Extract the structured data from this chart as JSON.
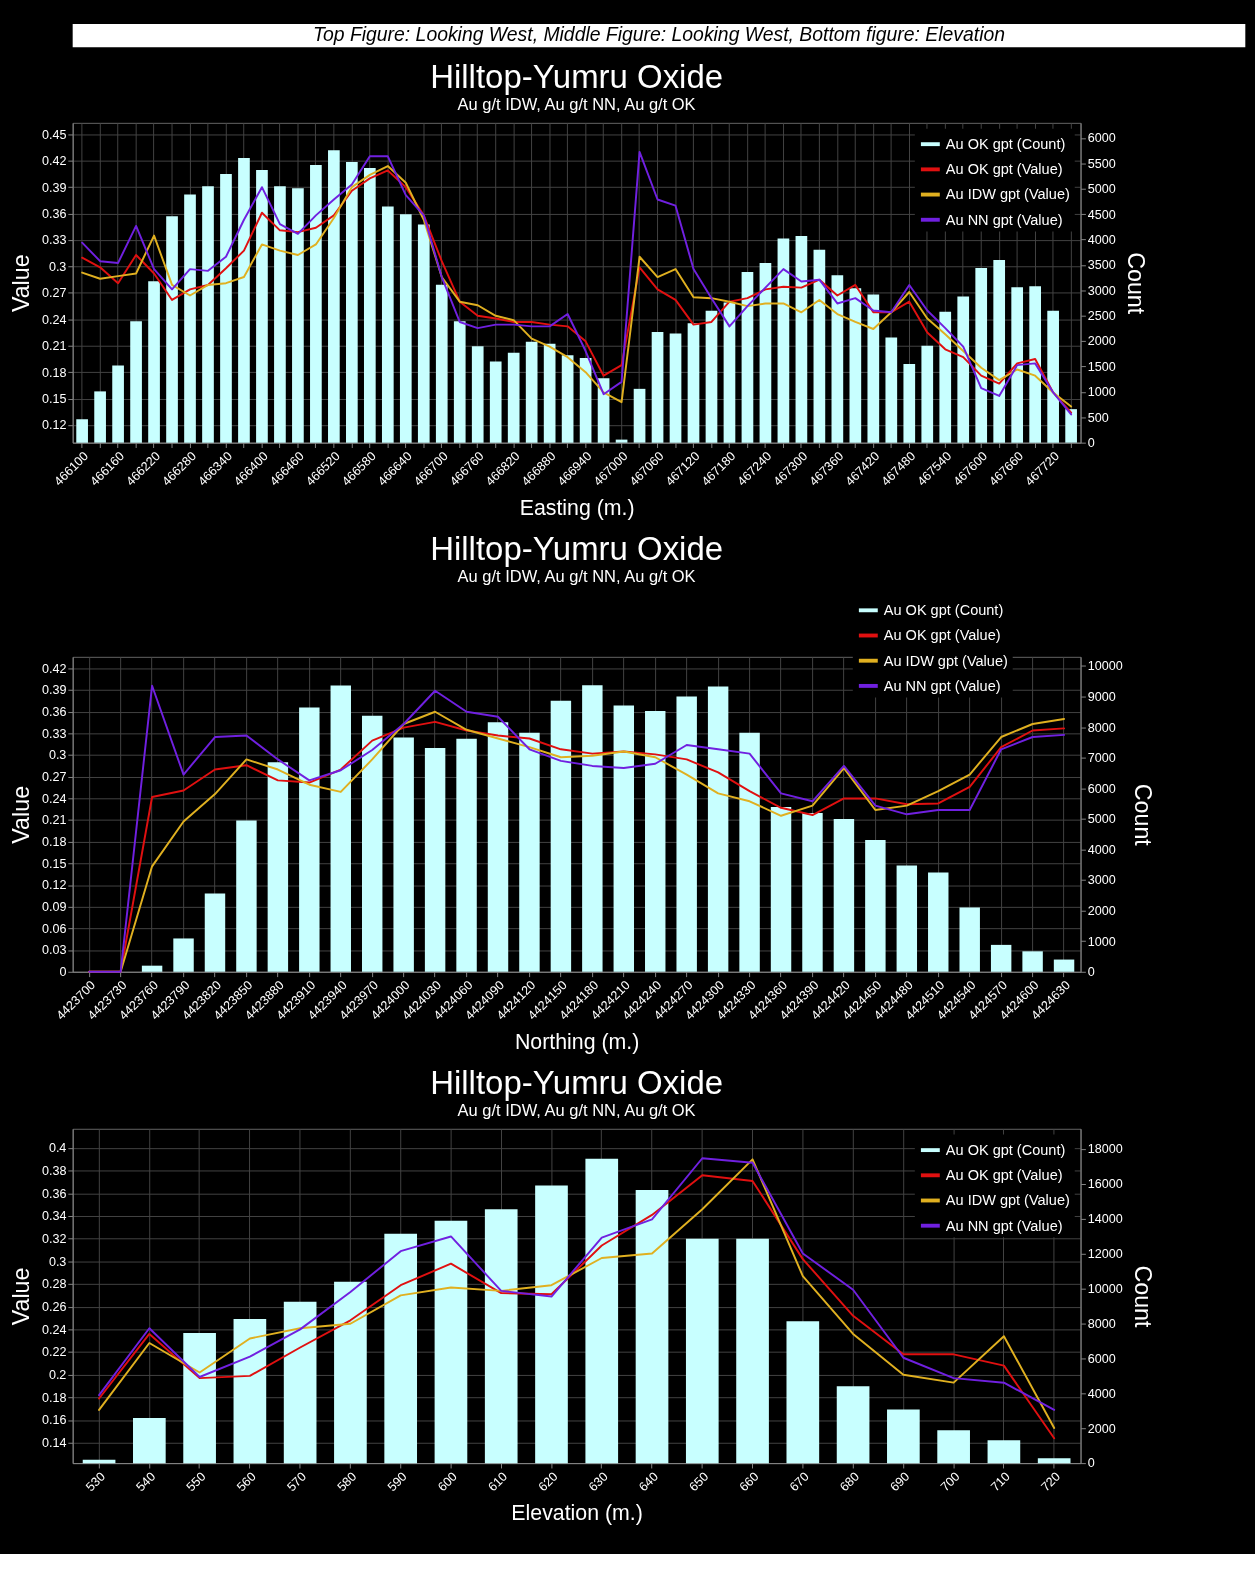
{
  "chart_data": [
    {
      "type": "bar",
      "title": "Hilltop-Yumru Oxide",
      "subtitle": "Au g/t IDW, Au g/t NN, Au g/t OK",
      "xlabel": "Easting (m.)",
      "ylabel": "Value",
      "y2label": "Count",
      "annotations": [
        "Top Figure: Looking West, Middle Figure: Looking West, Bottom figure: Elevation"
      ],
      "categories": [
        "466100",
        null,
        "466160",
        null,
        "466220",
        null,
        "466280",
        null,
        "466340",
        null,
        "466400",
        null,
        "466460",
        null,
        "466520",
        null,
        "466580",
        null,
        "466640",
        null,
        "466700",
        null,
        "466760",
        null,
        "466820",
        null,
        "466880",
        null,
        "466940",
        null,
        "467000",
        null,
        "467060",
        null,
        "467120",
        null,
        "467180",
        null,
        "467240",
        null,
        "467300",
        null,
        "467360",
        null,
        "467420",
        null,
        "467480",
        null,
        "467540",
        null,
        "467600",
        null,
        "467660",
        null,
        "467720",
        null
      ],
      "ylim": [
        0.1,
        0.463
      ],
      "yticks": [
        0.12,
        0.15,
        0.18,
        0.21,
        0.24,
        0.27,
        0.3,
        0.33,
        0.36,
        0.39,
        0.42,
        0.45
      ],
      "y2lim": [
        0,
        6300
      ],
      "y2ticks": [
        0,
        500,
        1000,
        1500,
        2000,
        2500,
        3000,
        3500,
        4000,
        4500,
        5000,
        5500,
        6000
      ],
      "grid": true,
      "legend": "top right",
      "series": [
        {
          "name": "Au OK gpt (Count)",
          "axis": "y2",
          "color": "#c8ffff",
          "values": [
            460,
            1010,
            1520,
            2390,
            3180,
            4460,
            4890,
            5050,
            5290,
            5610,
            5370,
            5050,
            5010,
            5470,
            5760,
            5530,
            5410,
            4650,
            4500,
            4300,
            3110,
            2390,
            1900,
            1600,
            1770,
            1990,
            1950,
            1720,
            1670,
            1270,
            60,
            1060,
            2180,
            2150,
            2350,
            2600,
            2760,
            3360,
            3540,
            4020,
            4070,
            3800,
            3300,
            3040,
            2920,
            2070,
            1550,
            1910,
            2580,
            2880,
            3440,
            3600,
            3060,
            3080,
            2600,
            660
          ]
        },
        {
          "name": "Au OK gpt (Value)",
          "type": "line",
          "color": "#e01010",
          "values": [
            0.31,
            0.299,
            0.281,
            0.313,
            0.292,
            0.262,
            0.274,
            0.279,
            0.298,
            0.318,
            0.361,
            0.341,
            0.339,
            0.344,
            0.358,
            0.386,
            0.4,
            0.409,
            0.39,
            0.358,
            0.306,
            0.26,
            0.244,
            0.241,
            0.237,
            0.237,
            0.234,
            0.232,
            0.215,
            0.176,
            0.188,
            0.299,
            0.274,
            0.262,
            0.234,
            0.237,
            0.26,
            0.264,
            0.274,
            0.277,
            0.276,
            0.285,
            0.267,
            0.279,
            0.248,
            0.248,
            0.26,
            0.225,
            0.206,
            0.197,
            0.176,
            0.167,
            0.19,
            0.195,
            0.157,
            0.134
          ]
        },
        {
          "name": "Au IDW gpt (Value)",
          "type": "line",
          "color": "#e0b020",
          "values": [
            0.293,
            0.286,
            0.289,
            0.292,
            0.335,
            0.279,
            0.267,
            0.279,
            0.281,
            0.288,
            0.325,
            0.318,
            0.313,
            0.325,
            0.355,
            0.39,
            0.404,
            0.414,
            0.395,
            0.353,
            0.288,
            0.26,
            0.256,
            0.244,
            0.239,
            0.218,
            0.209,
            0.197,
            0.18,
            0.157,
            0.146,
            0.311,
            0.288,
            0.297,
            0.265,
            0.264,
            0.26,
            0.255,
            0.258,
            0.258,
            0.248,
            0.262,
            0.246,
            0.237,
            0.229,
            0.248,
            0.271,
            0.241,
            0.223,
            0.204,
            0.185,
            0.171,
            0.183,
            0.176,
            0.157,
            0.141
          ]
        },
        {
          "name": "Au NN gpt (Value)",
          "type": "line",
          "color": "#7020e0",
          "values": [
            0.327,
            0.306,
            0.304,
            0.346,
            0.297,
            0.274,
            0.297,
            0.295,
            0.311,
            0.353,
            0.39,
            0.348,
            0.337,
            0.358,
            0.376,
            0.393,
            0.425,
            0.425,
            0.381,
            0.358,
            0.288,
            0.237,
            0.23,
            0.234,
            0.234,
            0.232,
            0.232,
            0.246,
            0.204,
            0.155,
            0.169,
            0.43,
            0.376,
            0.369,
            0.297,
            0.264,
            0.232,
            0.255,
            0.276,
            0.297,
            0.283,
            0.285,
            0.258,
            0.264,
            0.25,
            0.248,
            0.279,
            0.25,
            0.23,
            0.209,
            0.162,
            0.153,
            0.188,
            0.19,
            0.157,
            0.132
          ]
        }
      ]
    },
    {
      "type": "bar",
      "title": "Hilltop-Yumru Oxide",
      "subtitle": "Au g/t IDW, Au g/t NN, Au g/t OK",
      "xlabel": "Northing (m.)",
      "ylabel": "Value",
      "y2label": "Count",
      "categories": [
        "4423700",
        "4423730",
        "4423760",
        "4423790",
        "4423820",
        "4423850",
        "4423880",
        "4423910",
        "4423940",
        "4423970",
        "4424000",
        "4424030",
        "4424060",
        "4424090",
        "4424120",
        "4424150",
        "4424180",
        "4424210",
        "4424240",
        "4424270",
        "4424300",
        "4424330",
        "4424360",
        "4424390",
        "4424420",
        "4424450",
        "4424480",
        "4424510",
        "4424540",
        "4424570",
        "4424600",
        "4424630"
      ],
      "ylim": [
        0,
        0.436
      ],
      "yticks": [
        0,
        0.03,
        0.06,
        0.09,
        0.12,
        0.15,
        0.18,
        0.21,
        0.24,
        0.27,
        0.3,
        0.33,
        0.36,
        0.39,
        0.42
      ],
      "y2lim": [
        0,
        10300
      ],
      "y2ticks": [
        0,
        1000,
        2000,
        3000,
        4000,
        5000,
        6000,
        7000,
        8000,
        9000,
        10000
      ],
      "grid": true,
      "legend": "top right",
      "series": [
        {
          "name": "Au OK gpt (Count)",
          "axis": "y2",
          "color": "#c8ffff",
          "values": [
            0,
            0,
            200,
            1090,
            2560,
            4950,
            6850,
            8640,
            9360,
            8370,
            7660,
            7320,
            7620,
            8160,
            7820,
            8860,
            9370,
            8710,
            8530,
            9000,
            9330,
            7820,
            5390,
            5190,
            5000,
            4310,
            3480,
            3250,
            2100,
            880,
            670,
            400
          ]
        },
        {
          "name": "Au OK gpt (Value)",
          "type": "line",
          "color": "#e01010",
          "values": [
            0,
            0,
            0.242,
            0.251,
            0.28,
            0.286,
            0.265,
            0.262,
            0.28,
            0.32,
            0.338,
            0.346,
            0.334,
            0.327,
            0.323,
            0.308,
            0.302,
            0.305,
            0.301,
            0.294,
            0.276,
            0.25,
            0.227,
            0.217,
            0.24,
            0.24,
            0.232,
            0.233,
            0.256,
            0.311,
            0.334,
            0.337
          ]
        },
        {
          "name": "Au IDW gpt (Value)",
          "type": "line",
          "color": "#e0b020",
          "values": [
            0,
            0,
            0.146,
            0.208,
            0.246,
            0.294,
            0.28,
            0.259,
            0.249,
            0.294,
            0.343,
            0.36,
            0.335,
            0.323,
            0.311,
            0.297,
            0.299,
            0.305,
            0.297,
            0.273,
            0.247,
            0.236,
            0.216,
            0.23,
            0.282,
            0.224,
            0.23,
            0.25,
            0.273,
            0.325,
            0.343,
            0.35
          ]
        },
        {
          "name": "Au NN gpt (Value)",
          "type": "line",
          "color": "#7020e0",
          "values": [
            0,
            0,
            0.396,
            0.273,
            0.325,
            0.327,
            0.294,
            0.265,
            0.279,
            0.307,
            0.343,
            0.389,
            0.36,
            0.353,
            0.308,
            0.292,
            0.285,
            0.282,
            0.288,
            0.314,
            0.308,
            0.302,
            0.247,
            0.236,
            0.285,
            0.23,
            0.218,
            0.224,
            0.224,
            0.308,
            0.325,
            0.328
          ]
        }
      ]
    },
    {
      "type": "bar",
      "title": "Hilltop-Yumru Oxide",
      "subtitle": "Au g/t IDW, Au g/t NN, Au g/t OK",
      "xlabel": "Elevation (m.)",
      "ylabel": "Value",
      "y2label": "Count",
      "categories": [
        "530",
        "540",
        "550",
        "560",
        "570",
        "580",
        "590",
        "600",
        "610",
        "620",
        "630",
        "640",
        "650",
        "660",
        "670",
        "680",
        "690",
        "700",
        "710",
        "720"
      ],
      "ylim": [
        0.122,
        0.417
      ],
      "yticks": [
        0.14,
        0.16,
        0.18,
        0.2,
        0.22,
        0.24,
        0.26,
        0.28,
        0.3,
        0.32,
        0.34,
        0.36,
        0.38,
        0.4
      ],
      "y2lim": [
        0,
        19150
      ],
      "y2ticks": [
        0,
        2000,
        4000,
        6000,
        8000,
        10000,
        12000,
        14000,
        16000,
        18000
      ],
      "grid": true,
      "legend": "top right",
      "series": [
        {
          "name": "Au OK gpt (Count)",
          "axis": "y2",
          "color": "#c8ffff",
          "values": [
            200,
            2590,
            7460,
            8260,
            9250,
            10390,
            13140,
            13880,
            14540,
            15900,
            17430,
            15650,
            12850,
            12850,
            8120,
            4400,
            3070,
            1880,
            1310,
            280
          ]
        },
        {
          "name": "Au OK gpt (Value)",
          "type": "line",
          "color": "#e01010",
          "values": [
            0.179,
            0.236,
            0.197,
            0.199,
            0.224,
            0.248,
            0.279,
            0.298,
            0.272,
            0.271,
            0.314,
            0.341,
            0.376,
            0.371,
            0.302,
            0.252,
            0.218,
            0.218,
            0.208,
            0.144
          ]
        },
        {
          "name": "Au IDW gpt (Value)",
          "type": "line",
          "color": "#e0b020",
          "values": [
            0.169,
            0.228,
            0.202,
            0.232,
            0.241,
            0.245,
            0.27,
            0.277,
            0.274,
            0.279,
            0.303,
            0.307,
            0.346,
            0.39,
            0.287,
            0.236,
            0.2,
            0.193,
            0.234,
            0.153
          ]
        },
        {
          "name": "Au NN gpt (Value)",
          "type": "line",
          "color": "#7020e0",
          "values": [
            0.182,
            0.241,
            0.198,
            0.216,
            0.24,
            0.273,
            0.309,
            0.322,
            0.274,
            0.269,
            0.321,
            0.337,
            0.391,
            0.387,
            0.307,
            0.275,
            0.215,
            0.197,
            0.193,
            0.169
          ]
        }
      ]
    }
  ]
}
